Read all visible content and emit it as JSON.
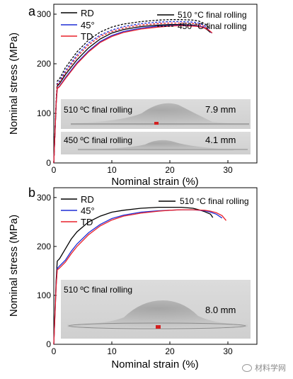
{
  "watermark": {
    "text": "材料学网",
    "icon": "wechat-icon"
  },
  "chart_data": [
    {
      "panel_letter": "a",
      "type": "line",
      "xlabel": "Nominal strain (%)",
      "ylabel": "Nominal stress (MPa)",
      "xlim": [
        0,
        35
      ],
      "ylim": [
        0,
        320
      ],
      "xticks": [
        0,
        10,
        20,
        30
      ],
      "yticks": [
        0,
        100,
        200,
        300
      ],
      "grid": false,
      "legend_orientation": {
        "position": "top-left",
        "entries": [
          "RD",
          "45°",
          "TD"
        ],
        "colors": [
          "#000000",
          "#1f2fd6",
          "#e8202a"
        ]
      },
      "legend_condition": {
        "position": "top-right",
        "entries": [
          "510 °C final rolling",
          "450 °C final rolling"
        ],
        "styles": [
          "solid",
          "dashed"
        ]
      },
      "inset_photos": [
        {
          "label": "510 ºC final rolling",
          "value": "7.9 mm"
        },
        {
          "label": "450 ºC final rolling",
          "value": "4.1 mm"
        }
      ],
      "series": [
        {
          "orientation": "RD",
          "condition": "510 °C final rolling",
          "color": "#000000",
          "dash": "solid",
          "x": [
            0,
            0.4,
            0.6,
            1,
            2,
            4,
            6,
            8,
            10,
            12,
            15,
            18,
            20,
            22,
            24,
            25,
            26,
            26.5,
            27.0
          ],
          "y": [
            0,
            120,
            155,
            160,
            178,
            208,
            232,
            250,
            262,
            269,
            275,
            278,
            279,
            279,
            278,
            276,
            272,
            268,
            263
          ]
        },
        {
          "orientation": "45°",
          "condition": "510 °C final rolling",
          "color": "#1f2fd6",
          "dash": "solid",
          "x": [
            0,
            0.4,
            0.6,
            1,
            2,
            4,
            6,
            8,
            10,
            12,
            15,
            18,
            20,
            22,
            24,
            25,
            26,
            26.6,
            27.2
          ],
          "y": [
            0,
            118,
            150,
            155,
            172,
            202,
            226,
            245,
            257,
            265,
            272,
            276,
            277,
            278,
            277,
            276,
            273,
            269,
            262
          ]
        },
        {
          "orientation": "TD",
          "condition": "510 °C final rolling",
          "color": "#e8202a",
          "dash": "solid",
          "x": [
            0,
            0.4,
            0.6,
            1,
            2,
            4,
            6,
            8,
            10,
            12,
            15,
            18,
            20,
            22,
            24,
            25,
            26,
            26.7,
            27.3
          ],
          "y": [
            0,
            118,
            150,
            154,
            170,
            200,
            224,
            243,
            255,
            263,
            270,
            274,
            276,
            277,
            276,
            275,
            272,
            268,
            262
          ]
        },
        {
          "orientation": "RD",
          "condition": "450 °C final rolling",
          "color": "#000000",
          "dash": "dashed",
          "x": [
            0,
            0.4,
            0.6,
            1,
            2,
            4,
            6,
            8,
            10,
            12,
            15,
            18,
            20,
            22,
            24,
            25,
            26,
            26.8
          ],
          "y": [
            0,
            125,
            165,
            170,
            192,
            224,
            248,
            264,
            274,
            280,
            285,
            288,
            289,
            289,
            288,
            286,
            281,
            272
          ]
        },
        {
          "orientation": "45°",
          "condition": "450 °C final rolling",
          "color": "#1f2fd6",
          "dash": "dashed",
          "x": [
            0,
            0.4,
            0.6,
            1,
            2,
            4,
            6,
            8,
            10,
            12,
            15,
            18,
            20,
            22,
            24,
            25,
            26,
            26.6
          ],
          "y": [
            0,
            122,
            160,
            165,
            186,
            218,
            242,
            258,
            268,
            275,
            281,
            284,
            285,
            285,
            284,
            282,
            277,
            270
          ]
        },
        {
          "orientation": "TD",
          "condition": "450 °C final rolling",
          "color": "#e8202a",
          "dash": "dashed",
          "x": [
            0,
            0.4,
            0.6,
            1,
            2,
            4,
            6,
            8,
            10,
            12,
            15,
            18,
            20,
            22,
            24,
            25,
            26,
            26.5
          ],
          "y": [
            0,
            120,
            158,
            162,
            182,
            214,
            238,
            255,
            265,
            272,
            278,
            281,
            282,
            282,
            281,
            279,
            275,
            269
          ]
        }
      ]
    },
    {
      "panel_letter": "b",
      "type": "line",
      "xlabel": "Nominal strain (%)",
      "ylabel": "Nominal stress (MPa)",
      "xlim": [
        0,
        35
      ],
      "ylim": [
        0,
        320
      ],
      "xticks": [
        0,
        10,
        20,
        30
      ],
      "yticks": [
        0,
        100,
        200,
        300
      ],
      "grid": false,
      "legend_orientation": {
        "position": "top-left",
        "entries": [
          "RD",
          "45°",
          "TD"
        ],
        "colors": [
          "#000000",
          "#1f2fd6",
          "#e8202a"
        ]
      },
      "legend_condition": {
        "position": "top-right",
        "entries": [
          "510 °C final rolling"
        ],
        "styles": [
          "solid"
        ]
      },
      "inset_photos": [
        {
          "label": "510 ºC final rolling",
          "value": "8.0 mm"
        }
      ],
      "series": [
        {
          "orientation": "RD",
          "condition": "510 °C final rolling",
          "color": "#000000",
          "dash": "solid",
          "x": [
            0,
            0.4,
            0.6,
            1,
            2,
            3,
            4,
            6,
            8,
            10,
            12,
            15,
            18,
            20,
            22,
            24,
            25,
            26,
            27,
            27.4
          ],
          "y": [
            0,
            130,
            170,
            175,
            195,
            215,
            230,
            250,
            262,
            270,
            274,
            278,
            280,
            280,
            280,
            278,
            275,
            271,
            266,
            259
          ]
        },
        {
          "orientation": "45°",
          "condition": "510 °C final rolling",
          "color": "#1f2fd6",
          "dash": "solid",
          "x": [
            0,
            0.4,
            0.6,
            1,
            2,
            3,
            4,
            6,
            8,
            10,
            12,
            15,
            18,
            20,
            22,
            24,
            26,
            27,
            28,
            29
          ],
          "y": [
            0,
            120,
            155,
            160,
            172,
            190,
            205,
            228,
            245,
            257,
            264,
            270,
            273,
            274,
            275,
            275,
            273,
            270,
            266,
            258
          ]
        },
        {
          "orientation": "TD",
          "condition": "510 °C final rolling",
          "color": "#e8202a",
          "dash": "solid",
          "x": [
            0,
            0.4,
            0.6,
            1,
            2,
            3,
            4,
            6,
            8,
            10,
            12,
            15,
            18,
            20,
            22,
            24,
            26,
            27,
            28,
            29,
            29.7
          ],
          "y": [
            0,
            118,
            152,
            156,
            168,
            185,
            200,
            224,
            242,
            254,
            262,
            268,
            272,
            274,
            275,
            275,
            274,
            272,
            269,
            263,
            253
          ]
        }
      ]
    }
  ]
}
